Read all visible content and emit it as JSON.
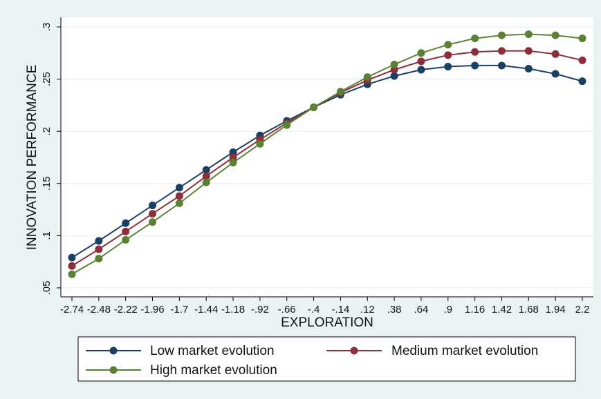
{
  "chart_data": {
    "type": "line",
    "title": "",
    "xlabel": "EXPLORATION",
    "ylabel": "INNOVATION PERFORMANCE",
    "x": [
      -2.74,
      -2.48,
      -2.22,
      -1.96,
      -1.7,
      -1.44,
      -1.18,
      -0.92,
      -0.66,
      -0.4,
      -0.14,
      0.12,
      0.38,
      0.64,
      0.9,
      1.16,
      1.42,
      1.68,
      1.94,
      2.2
    ],
    "x_tick_labels": [
      "-2.74",
      "-2.48",
      "-2.22",
      "-1.96",
      "-1.7",
      "-1.44",
      "-1.18",
      "-.92",
      "-.66",
      "-.4",
      "-.14",
      ".12",
      ".38",
      ".64",
      ".9",
      "1.16",
      "1.42",
      "1.68",
      "1.94",
      "2.2"
    ],
    "y_ticks": [
      0.05,
      0.1,
      0.15,
      0.2,
      0.25,
      0.3
    ],
    "y_tick_labels": [
      ".05",
      ".1",
      ".15",
      ".2",
      ".25",
      ".3"
    ],
    "ylim": [
      0.05,
      0.3
    ],
    "grid": true,
    "legend_position": "bottom",
    "series": [
      {
        "name": "Low market evolution",
        "color": "#1a3f64",
        "values": [
          0.079,
          0.095,
          0.112,
          0.129,
          0.146,
          0.163,
          0.18,
          0.196,
          0.21,
          0.223,
          0.235,
          0.245,
          0.253,
          0.259,
          0.262,
          0.263,
          0.263,
          0.26,
          0.255,
          0.248
        ]
      },
      {
        "name": "Medium market evolution",
        "color": "#8e2e3b",
        "values": [
          0.071,
          0.087,
          0.104,
          0.121,
          0.138,
          0.157,
          0.175,
          0.192,
          0.208,
          0.223,
          0.237,
          0.249,
          0.259,
          0.267,
          0.273,
          0.276,
          0.277,
          0.277,
          0.274,
          0.268
        ]
      },
      {
        "name": "High market evolution",
        "color": "#5b8234",
        "values": [
          0.063,
          0.078,
          0.096,
          0.113,
          0.131,
          0.151,
          0.17,
          0.188,
          0.206,
          0.223,
          0.238,
          0.252,
          0.264,
          0.275,
          0.283,
          0.289,
          0.292,
          0.293,
          0.292,
          0.289
        ]
      }
    ]
  }
}
